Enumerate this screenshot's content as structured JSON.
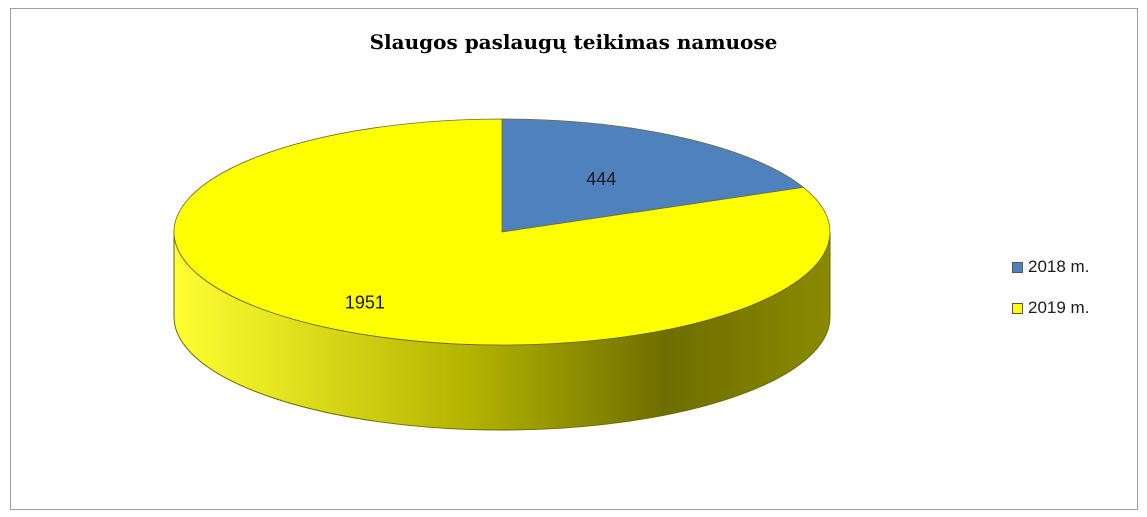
{
  "chart_data": {
    "type": "pie",
    "title": "Slaugos paslaugų teikimas namuose",
    "categories": [
      "2018 m.",
      "2019 m."
    ],
    "values": [
      444,
      1951
    ],
    "data_labels": [
      "444",
      "1951"
    ],
    "colors": [
      "#4f81bd",
      "#ffff00"
    ],
    "legend_position": "right",
    "style": "3d"
  }
}
